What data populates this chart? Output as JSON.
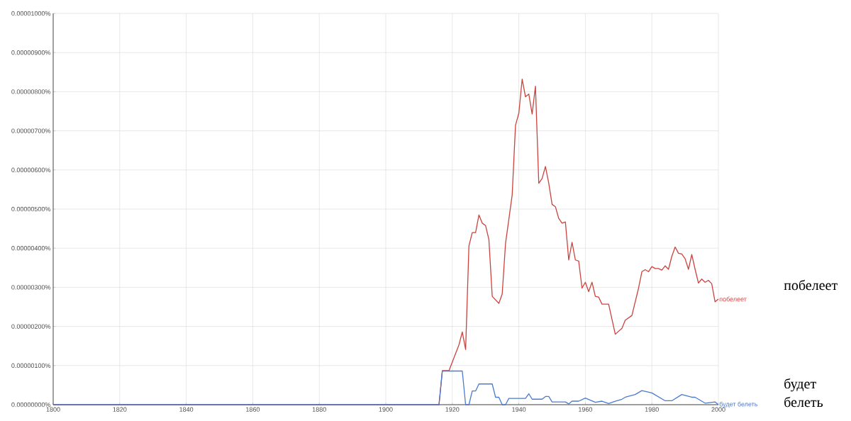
{
  "chart_data": {
    "type": "line",
    "xlim": [
      1800,
      2000
    ],
    "xticks": [
      1800,
      1820,
      1840,
      1860,
      1880,
      1900,
      1920,
      1940,
      1960,
      1980,
      2000
    ],
    "ylim": [
      0,
      1e-05
    ],
    "yticks": [
      {
        "value": 0,
        "label": "0.00000000%"
      },
      {
        "value": 1e-06,
        "label": "0.00000100%"
      },
      {
        "value": 2e-06,
        "label": "0.00000200%"
      },
      {
        "value": 3e-06,
        "label": "0.00000300%"
      },
      {
        "value": 4e-06,
        "label": "0.00000400%"
      },
      {
        "value": 5e-06,
        "label": "0.00000500%"
      },
      {
        "value": 6e-06,
        "label": "0.00000600%"
      },
      {
        "value": 7e-06,
        "label": "0.00000700%"
      },
      {
        "value": 8e-06,
        "label": "0.00000800%"
      },
      {
        "value": 9e-06,
        "label": "0.00000900%"
      },
      {
        "value": 1e-05,
        "label": "0.00001000%"
      }
    ],
    "grid": true,
    "marker": "none",
    "line_style": "solid",
    "series": [
      {
        "name": "побелеет",
        "color": "#c9443f",
        "x": [
          1800,
          1916,
          1917,
          1919,
          1922,
          1923,
          1924,
          1925,
          1926,
          1927,
          1928,
          1929,
          1930,
          1931,
          1932,
          1934,
          1935,
          1936,
          1938,
          1939,
          1940,
          1941,
          1942,
          1943,
          1944,
          1945,
          1946,
          1947,
          1948,
          1949,
          1950,
          1951,
          1952,
          1953,
          1954,
          1955,
          1956,
          1957,
          1958,
          1959,
          1960,
          1961,
          1962,
          1963,
          1964,
          1965,
          1967,
          1969,
          1971,
          1972,
          1974,
          1976,
          1977,
          1978,
          1979,
          1980,
          1981,
          1982,
          1983,
          1984,
          1985,
          1986,
          1987,
          1988,
          1989,
          1990,
          1991,
          1992,
          1993,
          1994,
          1995,
          1996,
          1997,
          1998,
          1999,
          2000
        ],
        "values": [
          0,
          0,
          8.7e-07,
          8.7e-07,
          1.53e-06,
          1.86e-06,
          1.41e-06,
          4.06e-06,
          4.4e-06,
          4.4e-06,
          4.85e-06,
          4.64e-06,
          4.58e-06,
          4.22e-06,
          2.77e-06,
          2.59e-06,
          2.83e-06,
          4.12e-06,
          5.36e-06,
          7.14e-06,
          7.45e-06,
          8.32e-06,
          7.87e-06,
          7.94e-06,
          7.43e-06,
          8.14e-06,
          5.66e-06,
          5.78e-06,
          6.09e-06,
          5.66e-06,
          5.12e-06,
          5.06e-06,
          4.76e-06,
          4.64e-06,
          4.67e-06,
          3.7e-06,
          4.15e-06,
          3.7e-06,
          3.67e-06,
          2.98e-06,
          3.13e-06,
          2.89e-06,
          3.13e-06,
          2.77e-06,
          2.75e-06,
          2.57e-06,
          2.57e-06,
          1.8e-06,
          1.95e-06,
          2.16e-06,
          2.28e-06,
          2.98e-06,
          3.4e-06,
          3.45e-06,
          3.4e-06,
          3.53e-06,
          3.48e-06,
          3.48e-06,
          3.44e-06,
          3.55e-06,
          3.46e-06,
          3.79e-06,
          4.03e-06,
          3.87e-06,
          3.85e-06,
          3.73e-06,
          3.46e-06,
          3.84e-06,
          3.46e-06,
          3.11e-06,
          3.21e-06,
          3.13e-06,
          3.18e-06,
          3.09e-06,
          2.63e-06,
          2.7e-06
        ]
      },
      {
        "name": "будет белеть",
        "color": "#4a7bd0",
        "x": [
          1800,
          1916,
          1917,
          1923,
          1924,
          1925,
          1926,
          1927,
          1928,
          1932,
          1933,
          1934,
          1935,
          1936,
          1937,
          1942,
          1943,
          1944,
          1947,
          1948,
          1949,
          1950,
          1954,
          1955,
          1956,
          1958,
          1960,
          1963,
          1965,
          1967,
          1969,
          1971,
          1972,
          1975,
          1977,
          1980,
          1984,
          1986,
          1989,
          1992,
          1993,
          1996,
          1999,
          2000
        ],
        "values": [
          0,
          0,
          8.6e-07,
          8.6e-07,
          0,
          0,
          3.5e-07,
          3.5e-07,
          5.3e-07,
          5.3e-07,
          1.9e-07,
          1.9e-07,
          0,
          0,
          1.6e-07,
          1.6e-07,
          2.8e-07,
          1.4e-07,
          1.4e-07,
          2.1e-07,
          2.1e-07,
          7e-08,
          7e-08,
          2e-08,
          9e-08,
          9e-08,
          1.7e-07,
          6e-08,
          9e-08,
          3e-08,
          9e-08,
          1.4e-07,
          1.9e-07,
          2.6e-07,
          3.6e-07,
          3e-07,
          1e-07,
          1e-07,
          2.6e-07,
          1.9e-07,
          1.9e-07,
          4e-08,
          7e-08,
          0
        ]
      }
    ],
    "annotations": [
      "побелеет",
      "будет белеть"
    ]
  }
}
